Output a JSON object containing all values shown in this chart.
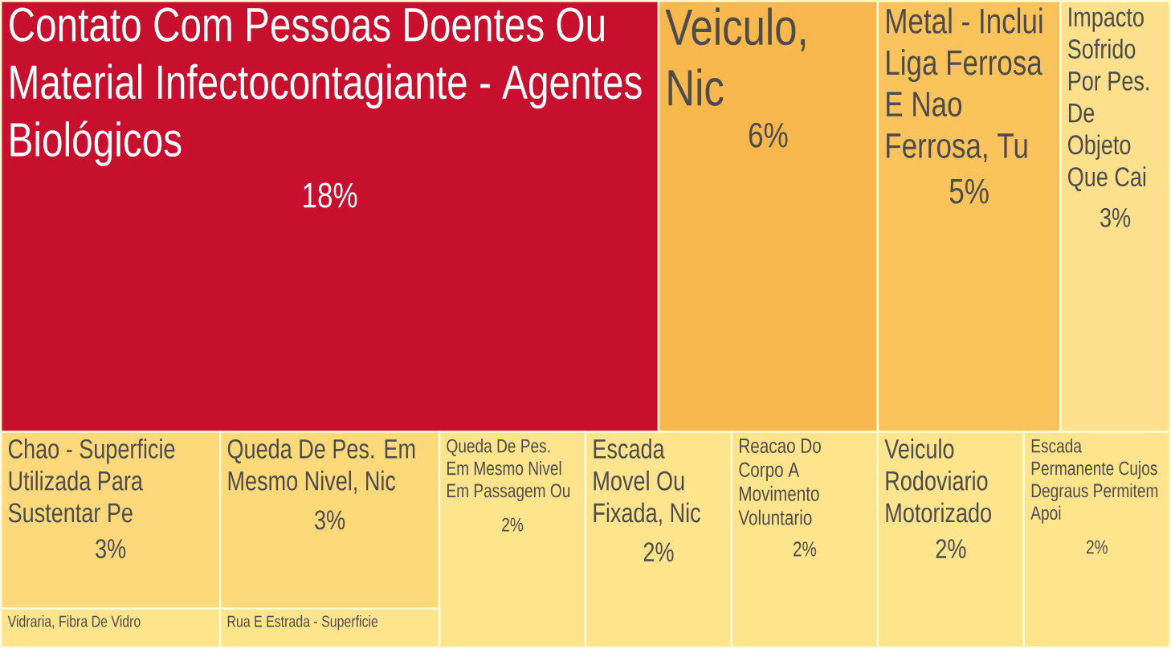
{
  "chart_data": {
    "type": "other",
    "categories": [
      "Contato Com Pessoas Doentes Ou Material Infectocontagiante - Agentes Biológicos",
      "Veiculo, Nic",
      "Metal - Inclui Liga Ferrosa E Nao Ferrosa, Tu",
      "Impacto Sofrido Por Pes. De Objeto Que Cai",
      "Chao - Superficie Utilizada Para Sustentar Pe",
      "Queda De Pes. Em Mesmo Nivel, Nic",
      "Queda De Pes. Em Mesmo Nivel Em Passagem Ou",
      "Escada Movel Ou Fixada, Nic",
      "Reacao Do Corpo A Movimento Voluntario",
      "Veiculo Rodoviario Motorizado",
      "Escada Permanente Cujos Degraus Permitem Apoi",
      "Vidraria, Fibra De Vidro",
      "Rua E Estrada - Superficie"
    ],
    "values": [
      18,
      6,
      5,
      3,
      3,
      3,
      2,
      2,
      2,
      2,
      2,
      null,
      null
    ],
    "value_labels": [
      "18%",
      "6%",
      "5%",
      "3%",
      "3%",
      "3%",
      "2%",
      "2%",
      "2%",
      "2%",
      "2%",
      null,
      null
    ],
    "colors": [
      "#c8102e",
      "#f8b84e",
      "#fbc35c",
      "#fde08c",
      "#fdd97c",
      "#fdd97a",
      "#fee48c",
      "#fee48c",
      "#fee48c",
      "#fee48c",
      "#fee48c",
      "#fee48c",
      "#fee48c"
    ]
  }
}
